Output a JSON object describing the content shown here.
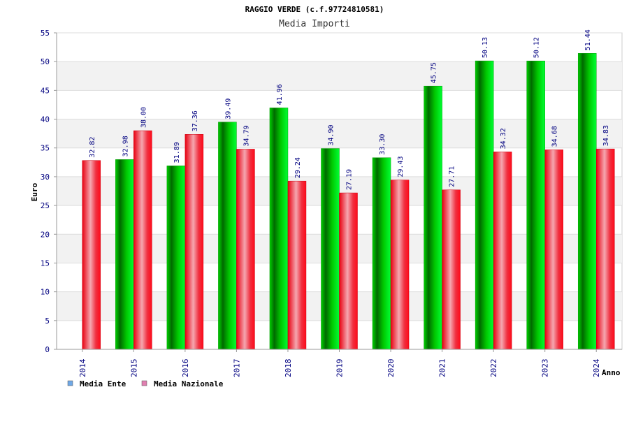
{
  "chart_data": {
    "type": "bar",
    "title": "RAGGIO VERDE (c.f.97724810581)",
    "subtitle": "Media Importi",
    "ylabel": "Euro",
    "xlabel": "Anno",
    "ylim": [
      0,
      55
    ],
    "yticks": [
      "0",
      "5",
      "10",
      "15",
      "20",
      "25",
      "30",
      "35",
      "40",
      "45",
      "50",
      "55"
    ],
    "categories": [
      "2014",
      "2015",
      "2016",
      "2017",
      "2018",
      "2019",
      "2020",
      "2021",
      "2022",
      "2023",
      "2024"
    ],
    "series": [
      {
        "name": "Media Ente",
        "color": "#00c000",
        "legend_color": "#6fa8e6",
        "values": [
          null,
          32.98,
          31.89,
          39.49,
          41.96,
          34.9,
          33.3,
          45.75,
          50.13,
          50.12,
          51.44
        ],
        "labels": [
          "",
          "32.98",
          "31.89",
          "39.49",
          "41.96",
          "34.90",
          "33.30",
          "45.75",
          "50.13",
          "50.12",
          "51.44"
        ]
      },
      {
        "name": "Media Nazionale",
        "color": "#ee1122",
        "legend_color": "#e07fb0",
        "values": [
          32.82,
          38.0,
          37.36,
          34.79,
          29.24,
          27.19,
          29.43,
          27.71,
          34.32,
          34.68,
          34.83
        ],
        "labels": [
          "32.82",
          "38.00",
          "37.36",
          "34.79",
          "29.24",
          "27.19",
          "29.43",
          "27.71",
          "34.32",
          "34.68",
          "34.83"
        ]
      }
    ],
    "grid": true,
    "legend": "bottom-left"
  }
}
